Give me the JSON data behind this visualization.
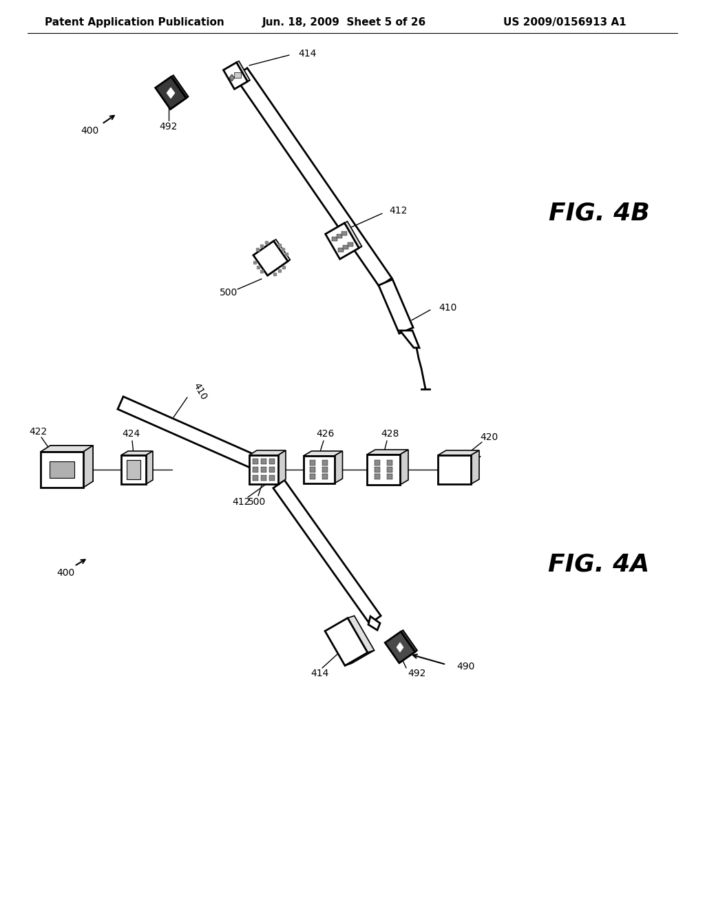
{
  "background_color": "#ffffff",
  "header_left": "Patent Application Publication",
  "header_center": "Jun. 18, 2009  Sheet 5 of 26",
  "header_right": "US 2009/0156913 A1",
  "fig4b_label": "FIG. 4B",
  "fig4a_label": "FIG. 4A",
  "line_color": "#000000",
  "header_fontsize": 11,
  "label_fontsize": 10,
  "fig_label_fontsize": 26
}
